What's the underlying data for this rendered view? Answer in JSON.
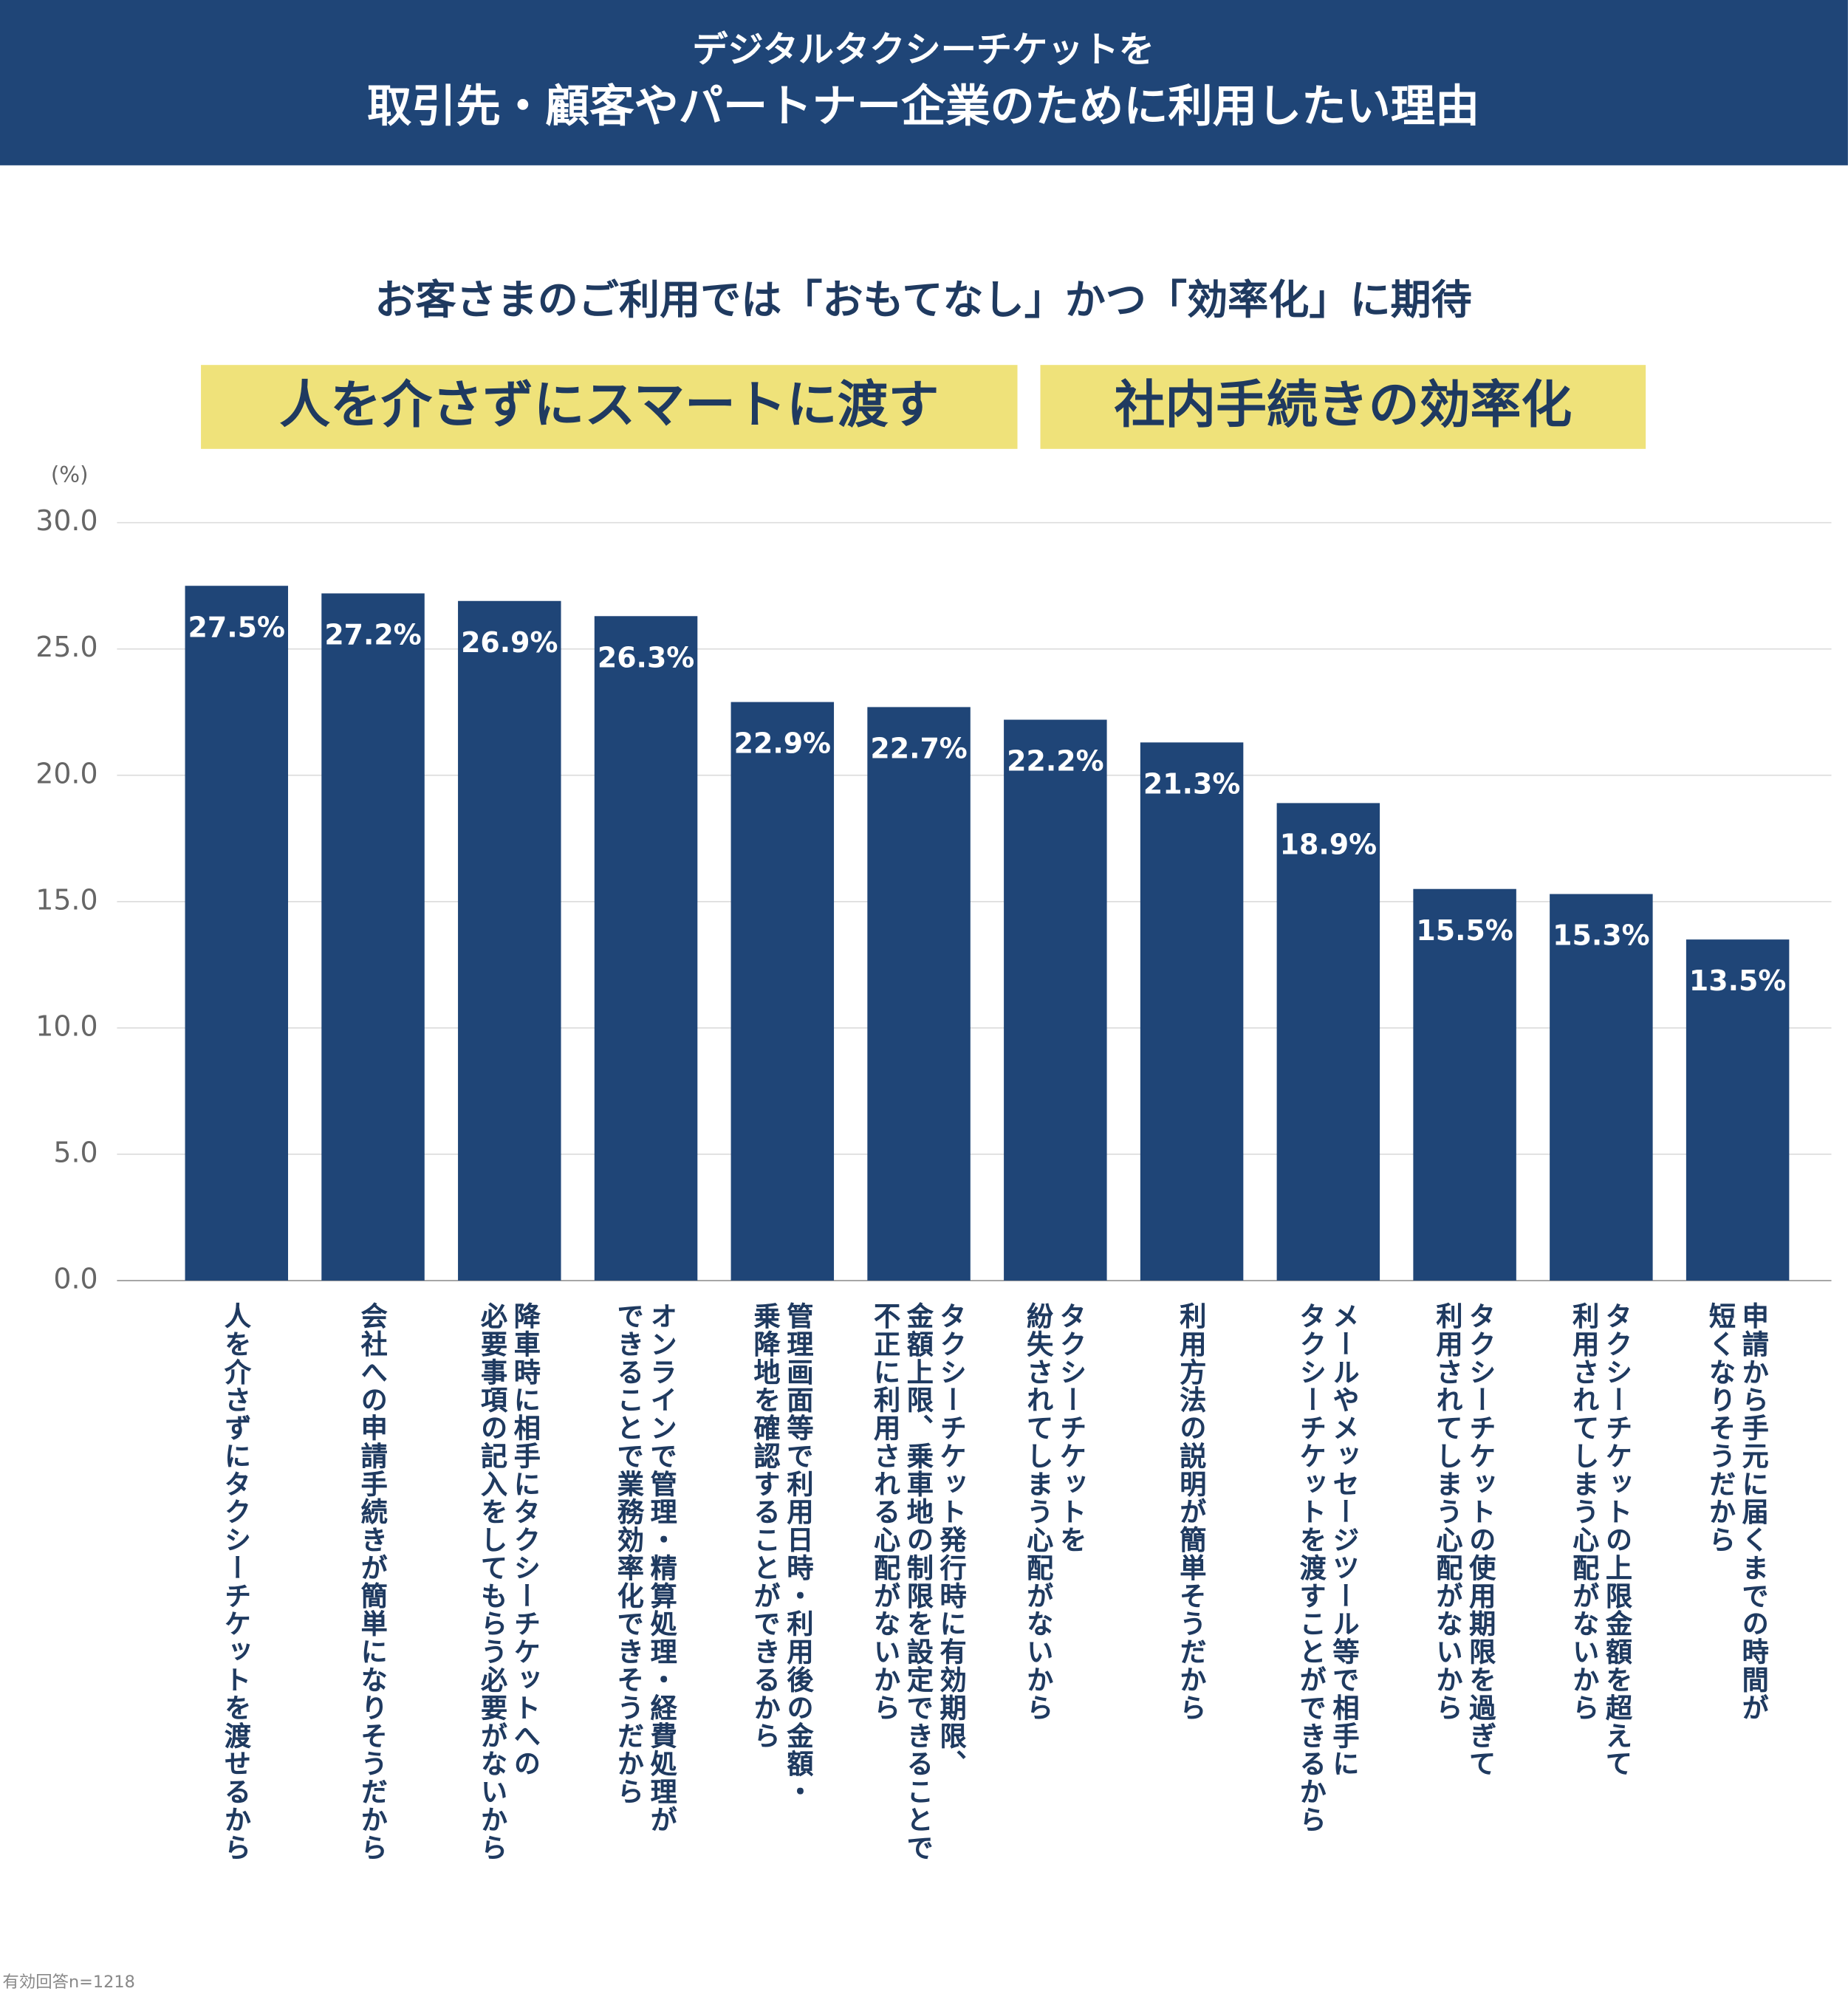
{
  "header": {
    "title_line1": "デジタルタクシーチケットを",
    "title_line2": "取引先・顧客やパートナー企業のために利用したい理由"
  },
  "subtitle": "お客さまのご利用では「おもてなし」かつ「効率化」に期待",
  "highlights": [
    "人を介さずにスマートに渡す",
    "社内手続きの効率化"
  ],
  "footnote": "有効回答n=1218",
  "chart_data": {
    "type": "bar",
    "y_unit_label": "(%)",
    "categories": [
      "人を介さずにタクシーチケットを渡せるから",
      "会社への申請手続きが簡単になりそうだから",
      "降車時に相手にタクシーチケットへの\n必要事項の記入をしてもらう必要がないから",
      "オンラインで管理・精算処理・経費処理が\nできることで業務効率化できそうだから",
      "管理画面等で利用日時・利用後の金額・\n乗降地を確認することができるから",
      "タクシーチケット発行時に有効期限、\n金額上限、乗車地の制限を設定できることで\n不正に利用される心配がないから",
      "タクシーチケットを\n紛失されてしまう心配がないから",
      "利用方法の説明が簡単そうだから",
      "メールやメッセージツール等で相手に\nタクシーチケットを渡すことができるから",
      "タクシーチケットの使用期限を過ぎて\n利用されてしまう心配がないから",
      "タクシーチケットの上限金額を超えて\n利用されてしまう心配がないから",
      "申請から手元に届くまでの時間が\n短くなりそうだから"
    ],
    "values": [
      27.5,
      27.2,
      26.9,
      26.3,
      22.9,
      22.7,
      22.2,
      21.3,
      18.9,
      15.5,
      15.3,
      13.5
    ],
    "value_labels": [
      "27.5%",
      "27.2%",
      "26.9%",
      "26.3%",
      "22.9%",
      "22.7%",
      "22.2%",
      "21.3%",
      "18.9%",
      "15.5%",
      "15.3%",
      "13.5%"
    ],
    "color": "#1f4577",
    "ylim": [
      0,
      30
    ],
    "yticks": [
      {
        "value": 0,
        "label": "0.0"
      },
      {
        "value": 5,
        "label": "5.0"
      },
      {
        "value": 10,
        "label": "10.0"
      },
      {
        "value": 15,
        "label": "15.0"
      },
      {
        "value": 20,
        "label": "20.0"
      },
      {
        "value": 25,
        "label": "25.0"
      },
      {
        "value": 30,
        "label": "30.0"
      }
    ],
    "grid": true
  }
}
